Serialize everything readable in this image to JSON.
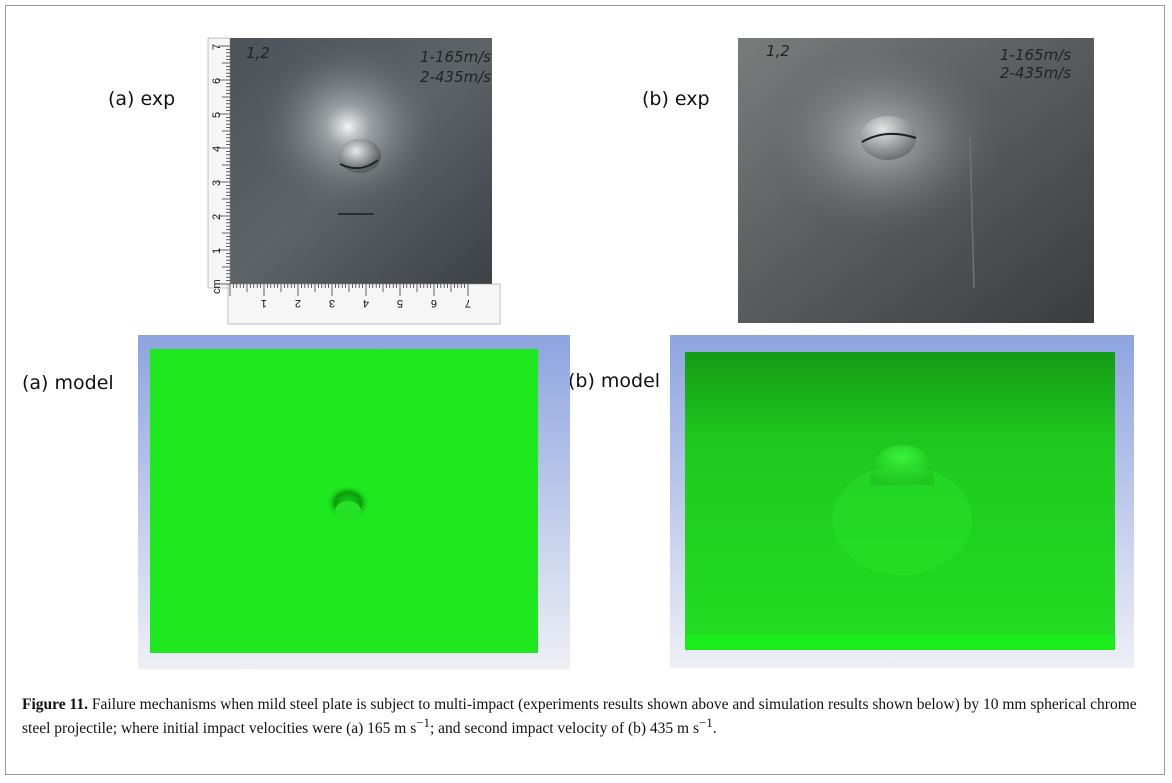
{
  "panels": {
    "a_exp": {
      "label": "(a) exp",
      "notes": [
        "1,2",
        "1-165m/s",
        "2-435m/s"
      ],
      "ruler_unit": "cm",
      "ruler_labels": [
        "1",
        "2",
        "3",
        "4",
        "5",
        "6",
        "7"
      ]
    },
    "b_exp": {
      "label": "(b) exp",
      "notes": [
        "1,2",
        "1-165m/s",
        "2-435m/s"
      ]
    },
    "a_model": {
      "label": "(a) model"
    },
    "b_model": {
      "label": "(b) model"
    }
  },
  "caption": {
    "figure": "Figure 11.",
    "parts": [
      "Failure mechanisms when mild steel plate is subject to multi-impact (experiments results shown above and simulation results shown below) by 10 mm spherical chrome steel projectile; where initial impact velocities were (a) 165 m s",
      "; and second impact velocity of (b) 435 m s",
      "."
    ],
    "superscript": "−1"
  }
}
